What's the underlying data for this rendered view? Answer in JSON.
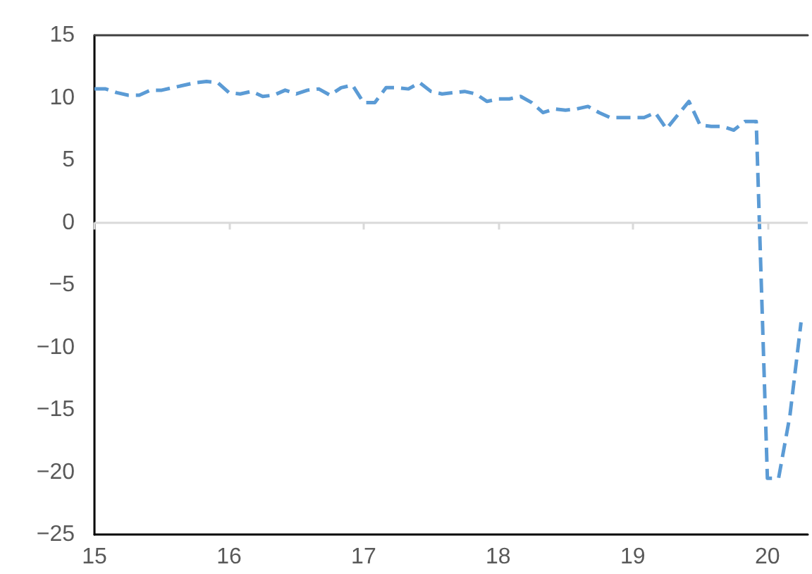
{
  "chart_data": {
    "type": "line",
    "line_style": "dashed",
    "marker": "none",
    "ref_lines": [
      {
        "axis": "y",
        "value": 0,
        "color": "#d9d9d9"
      }
    ],
    "x": [
      15,
      15.083,
      15.167,
      15.25,
      15.333,
      15.417,
      15.5,
      15.583,
      15.667,
      15.75,
      15.833,
      15.917,
      16,
      16.083,
      16.167,
      16.25,
      16.333,
      16.417,
      16.5,
      16.583,
      16.667,
      16.75,
      16.833,
      16.917,
      17,
      17.083,
      17.167,
      17.25,
      17.333,
      17.417,
      17.5,
      17.583,
      17.667,
      17.75,
      17.833,
      17.917,
      18,
      18.083,
      18.167,
      18.25,
      18.333,
      18.417,
      18.5,
      18.583,
      18.667,
      18.75,
      18.833,
      18.917,
      19,
      19.083,
      19.167,
      19.25,
      19.333,
      19.417,
      19.5,
      19.583,
      19.667,
      19.75,
      19.833,
      19.917,
      20,
      20.083,
      20.167,
      20.25
    ],
    "series": [
      {
        "color": "#5b9bd5",
        "values": [
          10.7,
          10.7,
          10.4,
          10.2,
          10.2,
          10.6,
          10.6,
          10.8,
          11.0,
          11.2,
          11.3,
          11.2,
          10.4,
          10.3,
          10.5,
          10.1,
          10.2,
          10.6,
          10.3,
          10.6,
          10.7,
          10.2,
          10.8,
          11.0,
          9.6,
          9.6,
          10.8,
          10.8,
          10.7,
          11.2,
          10.5,
          10.3,
          10.4,
          10.5,
          10.3,
          9.7,
          9.9,
          9.9,
          10.1,
          9.6,
          8.8,
          9.1,
          9.0,
          9.1,
          9.3,
          8.8,
          8.4,
          8.4,
          8.4,
          8.4,
          8.8,
          7.5,
          8.6,
          9.7,
          7.8,
          7.7,
          7.7,
          7.4,
          8.1,
          8.1,
          -20.5,
          -20.5,
          -15.5,
          -8.0
        ]
      }
    ],
    "xlim": [
      15,
      20.3
    ],
    "xticks": [
      15,
      16,
      17,
      18,
      19,
      20
    ],
    "ylim": [
      -25,
      15
    ],
    "yticks": [
      -25,
      -20,
      -15,
      -10,
      -5,
      0,
      5,
      10,
      15
    ]
  }
}
